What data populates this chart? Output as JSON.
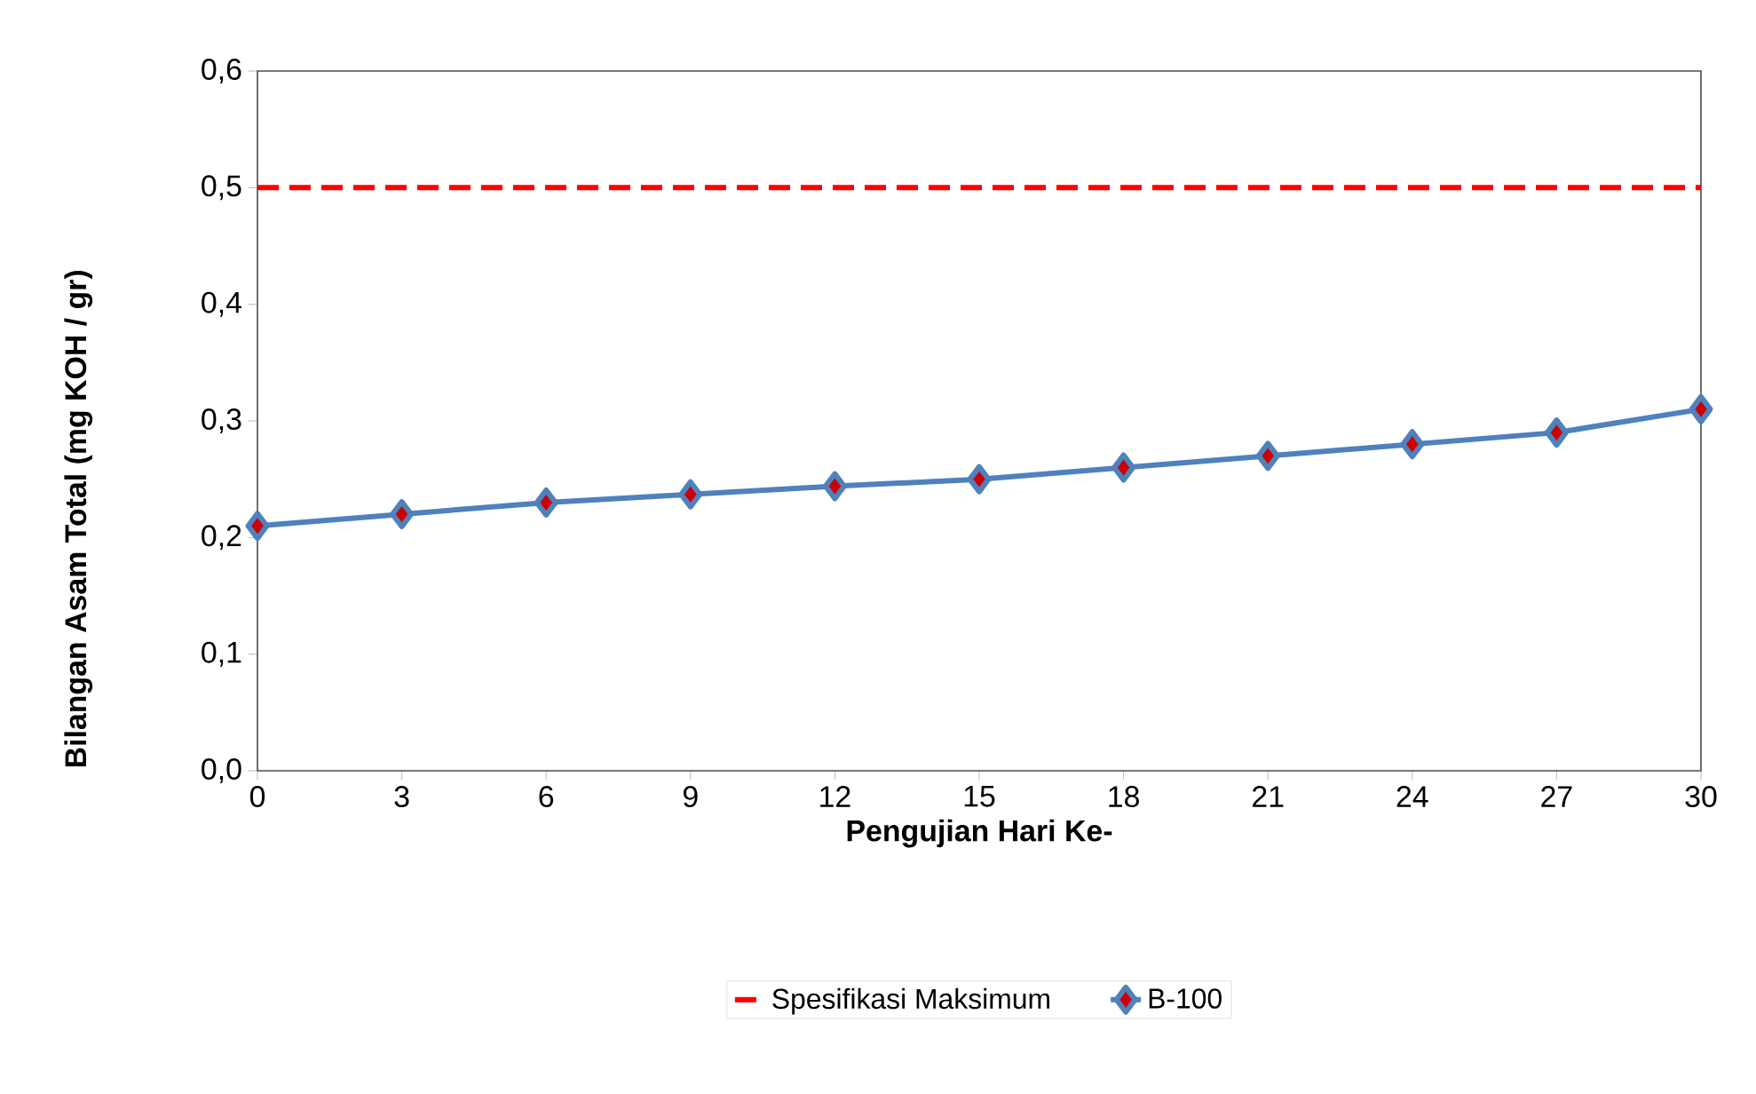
{
  "chart_data": {
    "type": "line",
    "xlabel": "Pengujian Hari Ke-",
    "ylabel": "Bilangan Asam Total (mg KOH / gr)",
    "categories": [
      "0",
      "3",
      "6",
      "9",
      "12",
      "15",
      "18",
      "21",
      "24",
      "27",
      "30"
    ],
    "series": [
      {
        "name": "Spesifikasi Maksimum",
        "color": "#ff0000",
        "line_style": "dashed",
        "marker": "none",
        "values": [
          0.5,
          0.5,
          0.5,
          0.5,
          0.5,
          0.5,
          0.5,
          0.5,
          0.5,
          0.5,
          0.5
        ]
      },
      {
        "name": "B-100",
        "color": "#4f81bd",
        "line_style": "solid",
        "marker": "diamond",
        "values": [
          0.21,
          0.22,
          0.23,
          0.237,
          0.244,
          0.25,
          0.26,
          0.27,
          0.28,
          0.29,
          0.31
        ]
      }
    ],
    "ylim": [
      0,
      0.6
    ],
    "yticks": [
      {
        "value": 0,
        "label": "0,0"
      },
      {
        "value": 0.1,
        "label": "0,1"
      },
      {
        "value": 0.2,
        "label": "0,2"
      },
      {
        "value": 0.3,
        "label": "0,3"
      },
      {
        "value": 0.4,
        "label": "0,4"
      },
      {
        "value": 0.5,
        "label": "0,5"
      },
      {
        "value": 0.6,
        "label": "0,6"
      }
    ],
    "grid": false,
    "legend": "bottom"
  }
}
